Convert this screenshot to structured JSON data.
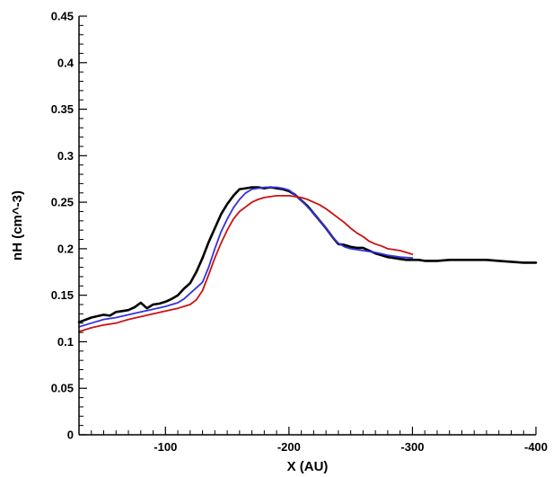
{
  "chart_data": {
    "type": "line",
    "title": "",
    "xlabel": "X (AU)",
    "ylabel": "nH (cm^-3)",
    "xlim": [
      -30,
      -400
    ],
    "ylim": [
      0,
      0.45
    ],
    "x_ticks": [
      -100,
      -200,
      -300,
      -400
    ],
    "x_tick_labels": [
      "-100",
      "-200",
      "-300",
      "-400"
    ],
    "y_ticks": [
      0,
      0.05,
      0.1,
      0.15,
      0.2,
      0.25,
      0.3,
      0.35,
      0.4,
      0.45
    ],
    "y_tick_labels": [
      "0",
      "0.05",
      "0.1",
      "0.15",
      "0.2",
      "0.25",
      "0.3",
      "0.35",
      "0.4",
      "0.45"
    ],
    "grid": false,
    "legend": "none",
    "series": [
      {
        "color": "#000000",
        "x": [
          -30,
          -40,
          -50,
          -55,
          -60,
          -65,
          -70,
          -75,
          -80,
          -85,
          -90,
          -95,
          -100,
          -105,
          -110,
          -115,
          -120,
          -125,
          -130,
          -135,
          -140,
          -145,
          -150,
          -155,
          -160,
          -165,
          -170,
          -175,
          -180,
          -185,
          -190,
          -195,
          -200,
          -205,
          -210,
          -215,
          -220,
          -225,
          -230,
          -235,
          -240,
          -245,
          -250,
          -255,
          -260,
          -265,
          -270,
          -275,
          -280,
          -285,
          -290,
          -295,
          -300,
          -305,
          -310,
          -320,
          -330,
          -340,
          -350,
          -360,
          -370,
          -380,
          -390,
          -400
        ],
        "y": [
          0.121,
          0.126,
          0.129,
          0.128,
          0.132,
          0.133,
          0.134,
          0.137,
          0.142,
          0.136,
          0.14,
          0.141,
          0.143,
          0.146,
          0.15,
          0.157,
          0.163,
          0.175,
          0.19,
          0.207,
          0.222,
          0.237,
          0.248,
          0.257,
          0.264,
          0.265,
          0.266,
          0.266,
          0.265,
          0.266,
          0.265,
          0.264,
          0.262,
          0.258,
          0.252,
          0.246,
          0.238,
          0.23,
          0.222,
          0.213,
          0.205,
          0.204,
          0.202,
          0.201,
          0.201,
          0.198,
          0.195,
          0.193,
          0.191,
          0.19,
          0.189,
          0.188,
          0.188,
          0.188,
          0.187,
          0.187,
          0.188,
          0.188,
          0.188,
          0.188,
          0.187,
          0.186,
          0.185,
          0.185
        ]
      },
      {
        "color": "#3333dd",
        "x": [
          -30,
          -40,
          -50,
          -60,
          -70,
          -80,
          -90,
          -100,
          -110,
          -115,
          -120,
          -125,
          -130,
          -135,
          -140,
          -145,
          -150,
          -155,
          -160,
          -165,
          -170,
          -175,
          -180,
          -185,
          -190,
          -195,
          -200,
          -205,
          -210,
          -215,
          -220,
          -225,
          -230,
          -235,
          -240,
          -245,
          -250,
          -255,
          -260,
          -270,
          -280,
          -290,
          -300
        ],
        "y": [
          0.116,
          0.12,
          0.124,
          0.126,
          0.129,
          0.132,
          0.135,
          0.138,
          0.142,
          0.146,
          0.152,
          0.158,
          0.164,
          0.18,
          0.2,
          0.218,
          0.232,
          0.244,
          0.253,
          0.26,
          0.264,
          0.265,
          0.266,
          0.266,
          0.266,
          0.265,
          0.263,
          0.258,
          0.252,
          0.245,
          0.238,
          0.23,
          0.222,
          0.213,
          0.206,
          0.202,
          0.2,
          0.199,
          0.198,
          0.196,
          0.193,
          0.191,
          0.19
        ]
      },
      {
        "color": "#cc1111",
        "x": [
          -30,
          -40,
          -50,
          -60,
          -70,
          -80,
          -90,
          -100,
          -110,
          -120,
          -125,
          -130,
          -135,
          -140,
          -145,
          -150,
          -155,
          -160,
          -165,
          -170,
          -175,
          -180,
          -185,
          -190,
          -195,
          -200,
          -205,
          -210,
          -215,
          -220,
          -225,
          -230,
          -235,
          -240,
          -245,
          -250,
          -255,
          -260,
          -265,
          -270,
          -275,
          -280,
          -285,
          -290,
          -295,
          -300
        ],
        "y": [
          0.111,
          0.115,
          0.118,
          0.12,
          0.124,
          0.127,
          0.13,
          0.133,
          0.136,
          0.14,
          0.145,
          0.155,
          0.172,
          0.19,
          0.206,
          0.22,
          0.232,
          0.24,
          0.245,
          0.25,
          0.253,
          0.255,
          0.256,
          0.257,
          0.257,
          0.257,
          0.256,
          0.255,
          0.253,
          0.25,
          0.247,
          0.243,
          0.238,
          0.233,
          0.228,
          0.222,
          0.217,
          0.213,
          0.208,
          0.205,
          0.203,
          0.2,
          0.199,
          0.198,
          0.196,
          0.194
        ]
      }
    ]
  }
}
